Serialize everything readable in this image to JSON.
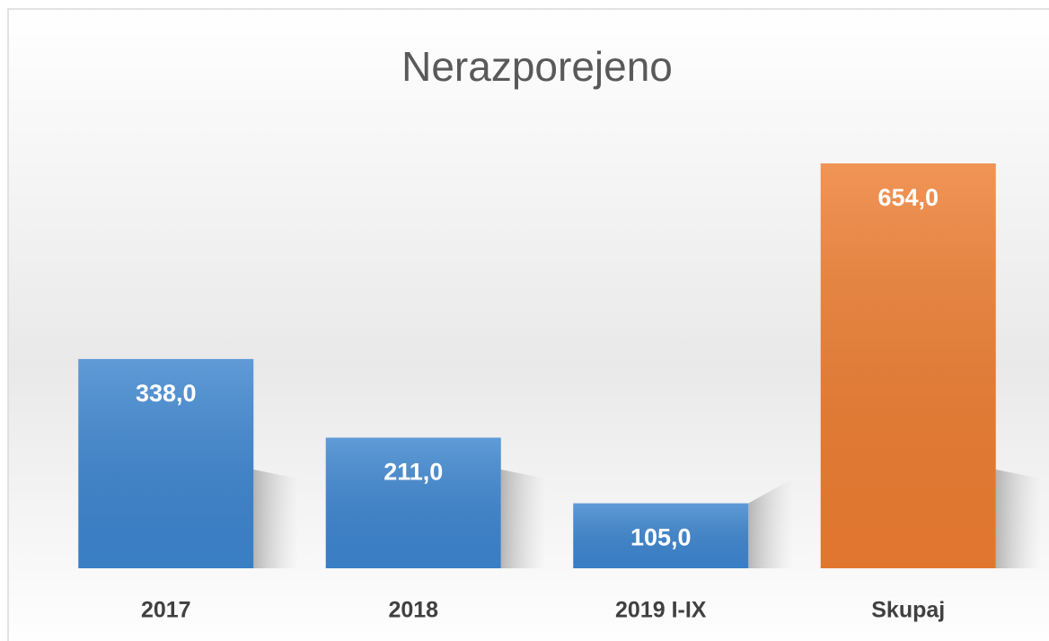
{
  "chart_data": {
    "type": "bar",
    "title": "Nerazporejeno",
    "categories": [
      "2017",
      "2018",
      "2019 I-IX",
      "Skupaj"
    ],
    "values": [
      338,
      211,
      105,
      654
    ],
    "value_labels": [
      "338,0",
      "211,0",
      "105,0",
      "654,0"
    ],
    "colors": [
      "#3d85cf",
      "#3d85cf",
      "#3d85cf",
      "#ed7d31"
    ]
  }
}
